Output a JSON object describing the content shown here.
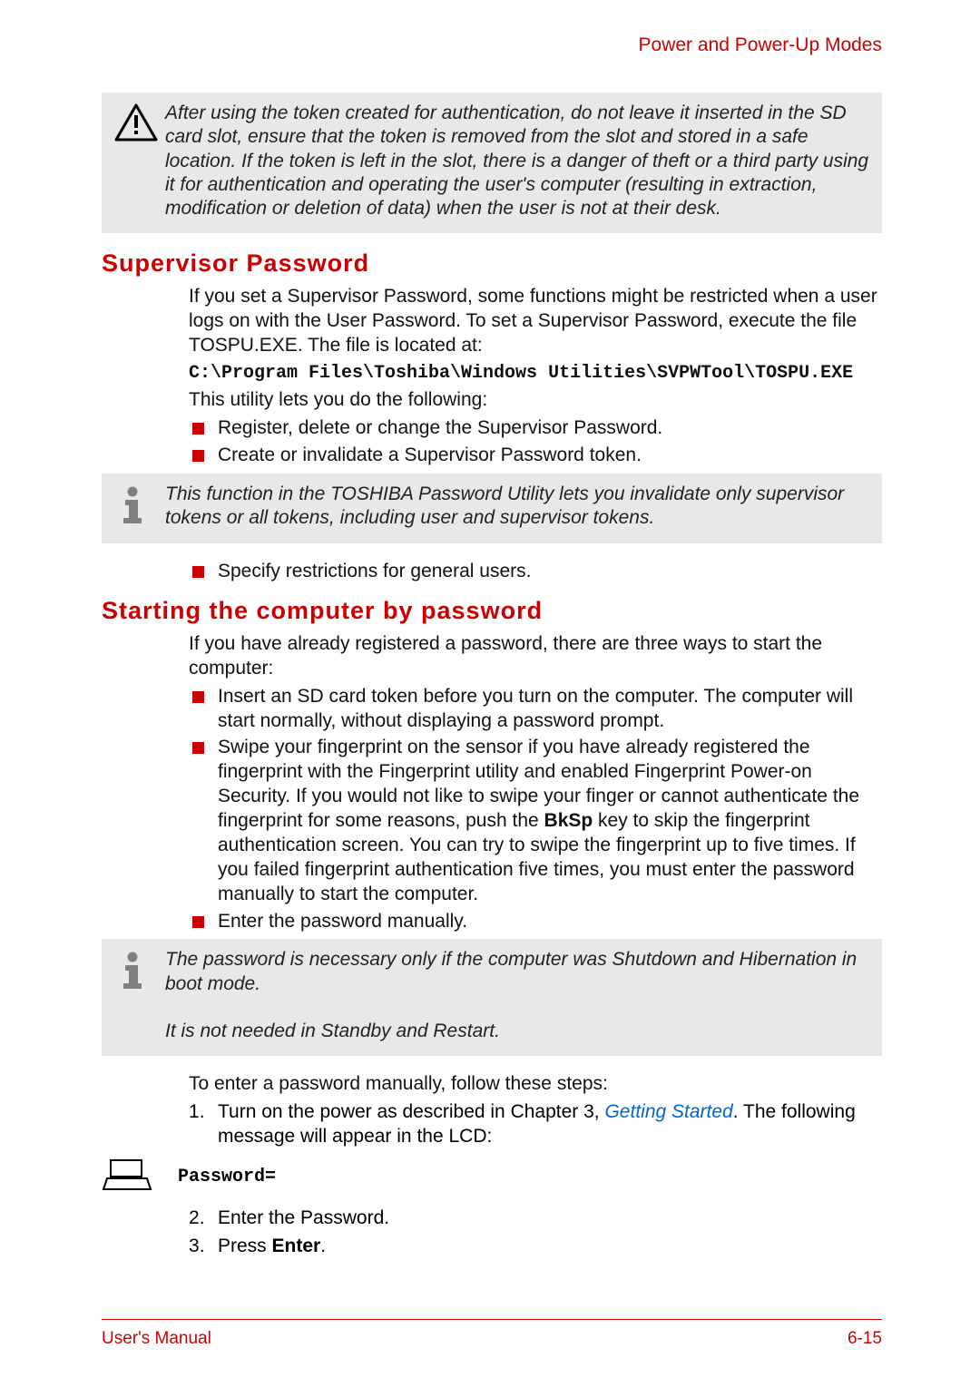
{
  "colors": {
    "accent": "#cc0000",
    "link": "#0066cc",
    "calloutBg": "#e8e8e8",
    "text": "#111111"
  },
  "header": {
    "section": "Power and Power-Up Modes"
  },
  "warning": {
    "text": "After using the token created for authentication, do not leave it inserted in the SD card slot, ensure that the token is removed from the slot and stored in a safe location. If the token is left in the slot, there is a danger of theft or a third party using it for authentication and operating the user's computer (resulting in extraction, modification or deletion of data) when the user is not at their desk."
  },
  "s1": {
    "title": "Supervisor Password",
    "p1": "If you set a Supervisor Password, some functions might be restricted when a user logs on with the User Password. To set a Supervisor Password, execute the file TOSPU.EXE. The file is located at:",
    "path": "C:\\Program Files\\Toshiba\\Windows Utilities\\SVPWTool\\TOSPU.EXE",
    "p2": "This utility lets you do the following:",
    "bullets1": [
      "Register, delete or change the Supervisor Password.",
      "Create or invalidate a Supervisor Password token."
    ],
    "info": "This function in the TOSHIBA Password Utility lets you invalidate only supervisor tokens or all tokens, including user and supervisor tokens.",
    "bullets2": [
      "Specify restrictions for general users."
    ]
  },
  "s2": {
    "title": "Starting the computer by password",
    "p1": "If you have already registered a password, there are three ways to start the computer:",
    "bullets": [
      "Insert an SD card token before you turn on the computer. The computer will start normally, without displaying a password prompt.",
      "Swipe your fingerprint on the sensor if you have already registered the fingerprint with the Fingerprint utility and enabled Fingerprint Power-on Security. If you would not like to swipe your finger or cannot authenticate the fingerprint for some reasons, push the |BkSp| key to skip the fingerprint authentication screen. You can try to swipe the fingerprint up to five times. If you failed fingerprint authentication five times, you must enter the password manually to start the computer.",
      "Enter the password manually."
    ],
    "note": {
      "l1": "The password is necessary only if the computer was Shutdown and Hibernation in boot mode.",
      "l2": "It is not needed in Standby and Restart."
    },
    "p2": "To enter a password manually, follow these steps:",
    "step1_a": "Turn on the power as described in Chapter 3, ",
    "step1_link": "Getting Started",
    "step1_b": ". The following message will appear in the LCD:",
    "pwLabel": "Password=",
    "step2": "Enter the Password.",
    "step3_a": "Press ",
    "step3_b": "Enter",
    "step3_c": "."
  },
  "footer": {
    "left": "User's Manual",
    "right": "6-15"
  }
}
